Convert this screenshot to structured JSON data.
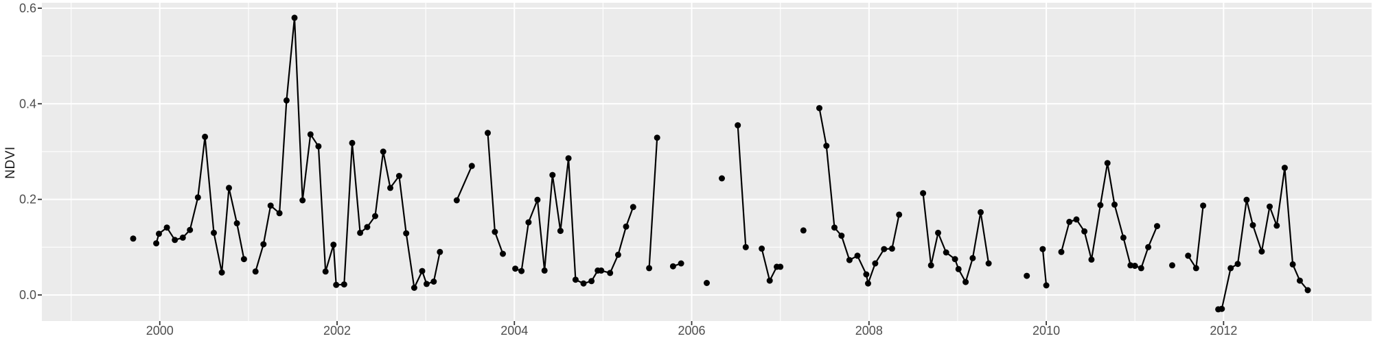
{
  "chart_data": {
    "type": "line",
    "title": "",
    "xlabel": "",
    "ylabel": "NDVI",
    "legend": "none",
    "grid": true,
    "xlim": [
      1998.67,
      2013.67
    ],
    "ylim": [
      -0.0546,
      0.6114
    ],
    "x_ticks": [
      2000,
      2002,
      2004,
      2006,
      2008,
      2010,
      2012
    ],
    "x_tick_labels": [
      "2000",
      "2002",
      "2004",
      "2006",
      "2008",
      "2010",
      "2012"
    ],
    "x_minor_gridlines": [
      1999,
      2001,
      2003,
      2005,
      2007,
      2009,
      2011,
      2013
    ],
    "y_ticks": [
      0.0,
      0.2,
      0.4,
      0.6
    ],
    "y_tick_labels": [
      "0.0",
      "0.2",
      "0.4",
      "0.6"
    ],
    "y_minor_gridlines": [
      0.1,
      0.3,
      0.5
    ],
    "style": {
      "panel_background": "#EBEBEB",
      "grid_color": "#FFFFFF",
      "line_color": "#000000",
      "point_color": "#000000",
      "tick_mark_color": "#333333",
      "tick_label_color": "#4D4D4D",
      "axis_title_color": "#1A1A1A"
    },
    "series": [
      {
        "name": "NDVI",
        "segments": [
          [
            [
              1999.96,
              0.108
            ],
            [
              1999.99,
              0.128
            ],
            [
              2000.08,
              0.141
            ],
            [
              2000.17,
              0.115
            ],
            [
              2000.26,
              0.12
            ],
            [
              2000.34,
              0.136
            ],
            [
              2000.43,
              0.204
            ],
            [
              2000.51,
              0.331
            ],
            [
              2000.61,
              0.13
            ],
            [
              2000.7,
              0.047
            ],
            [
              2000.78,
              0.224
            ],
            [
              2000.87,
              0.15
            ],
            [
              2000.95,
              0.075
            ]
          ],
          [
            [
              2001.08,
              0.049
            ],
            [
              2001.17,
              0.106
            ],
            [
              2001.25,
              0.187
            ],
            [
              2001.35,
              0.171
            ],
            [
              2001.43,
              0.407
            ],
            [
              2001.52,
              0.58
            ],
            [
              2001.61,
              0.198
            ],
            [
              2001.7,
              0.336
            ],
            [
              2001.79,
              0.311
            ],
            [
              2001.87,
              0.049
            ],
            [
              2001.96,
              0.105
            ],
            [
              2001.99,
              0.021
            ],
            [
              2002.08,
              0.022
            ],
            [
              2002.17,
              0.318
            ],
            [
              2002.26,
              0.13
            ],
            [
              2002.34,
              0.142
            ],
            [
              2002.43,
              0.165
            ],
            [
              2002.52,
              0.3
            ],
            [
              2002.6,
              0.224
            ],
            [
              2002.7,
              0.249
            ],
            [
              2002.78,
              0.129
            ],
            [
              2002.87,
              0.015
            ],
            [
              2002.96,
              0.05
            ],
            [
              2003.01,
              0.023
            ],
            [
              2003.09,
              0.028
            ],
            [
              2003.16,
              0.09
            ]
          ],
          [
            [
              2003.35,
              0.198
            ],
            [
              2003.52,
              0.27
            ]
          ],
          [
            [
              2003.7,
              0.339
            ],
            [
              2003.78,
              0.132
            ],
            [
              2003.87,
              0.086
            ]
          ],
          [
            [
              2004.01,
              0.055
            ],
            [
              2004.08,
              0.05
            ],
            [
              2004.16,
              0.152
            ],
            [
              2004.26,
              0.199
            ],
            [
              2004.34,
              0.051
            ],
            [
              2004.43,
              0.251
            ],
            [
              2004.52,
              0.134
            ],
            [
              2004.61,
              0.286
            ],
            [
              2004.69,
              0.032
            ],
            [
              2004.78,
              0.024
            ],
            [
              2004.87,
              0.029
            ],
            [
              2004.94,
              0.051
            ],
            [
              2004.98,
              0.051
            ],
            [
              2005.08,
              0.046
            ],
            [
              2005.17,
              0.084
            ],
            [
              2005.26,
              0.143
            ],
            [
              2005.34,
              0.184
            ]
          ],
          [
            [
              2005.52,
              0.056
            ],
            [
              2005.61,
              0.329
            ]
          ],
          [
            [
              2005.79,
              0.06
            ],
            [
              2005.88,
              0.066
            ]
          ],
          [
            [
              2006.52,
              0.355
            ],
            [
              2006.61,
              0.1
            ]
          ],
          [
            [
              2006.79,
              0.097
            ],
            [
              2006.88,
              0.03
            ],
            [
              2006.96,
              0.059
            ],
            [
              2007.0,
              0.059
            ]
          ],
          [
            [
              2007.44,
              0.391
            ],
            [
              2007.52,
              0.312
            ],
            [
              2007.61,
              0.141
            ],
            [
              2007.69,
              0.124
            ],
            [
              2007.78,
              0.073
            ],
            [
              2007.87,
              0.082
            ],
            [
              2007.97,
              0.043
            ],
            [
              2007.99,
              0.024
            ],
            [
              2008.07,
              0.066
            ],
            [
              2008.17,
              0.096
            ],
            [
              2008.26,
              0.097
            ],
            [
              2008.34,
              0.168
            ]
          ],
          [
            [
              2008.61,
              0.213
            ],
            [
              2008.7,
              0.062
            ],
            [
              2008.78,
              0.13
            ],
            [
              2008.87,
              0.089
            ],
            [
              2008.97,
              0.075
            ],
            [
              2009.01,
              0.054
            ],
            [
              2009.09,
              0.027
            ],
            [
              2009.17,
              0.077
            ],
            [
              2009.26,
              0.173
            ],
            [
              2009.35,
              0.066
            ]
          ],
          [
            [
              2009.96,
              0.096
            ],
            [
              2010.0,
              0.02
            ]
          ],
          [
            [
              2010.17,
              0.09
            ],
            [
              2010.26,
              0.153
            ],
            [
              2010.34,
              0.158
            ],
            [
              2010.43,
              0.133
            ],
            [
              2010.51,
              0.074
            ],
            [
              2010.61,
              0.188
            ],
            [
              2010.69,
              0.276
            ],
            [
              2010.77,
              0.189
            ],
            [
              2010.87,
              0.12
            ],
            [
              2010.95,
              0.062
            ],
            [
              2011.0,
              0.061
            ],
            [
              2011.07,
              0.056
            ],
            [
              2011.15,
              0.1
            ],
            [
              2011.25,
              0.144
            ]
          ],
          [
            [
              2011.6,
              0.082
            ],
            [
              2011.69,
              0.056
            ],
            [
              2011.77,
              0.187
            ]
          ],
          [
            [
              2011.94,
              -0.03
            ],
            [
              2011.98,
              -0.029
            ],
            [
              2012.08,
              0.056
            ],
            [
              2012.16,
              0.065
            ],
            [
              2012.26,
              0.199
            ],
            [
              2012.33,
              0.146
            ],
            [
              2012.43,
              0.091
            ],
            [
              2012.52,
              0.185
            ],
            [
              2012.6,
              0.145
            ],
            [
              2012.69,
              0.266
            ],
            [
              2012.78,
              0.064
            ],
            [
              2012.86,
              0.03
            ],
            [
              2012.95,
              0.01
            ]
          ]
        ],
        "isolated_points": [
          [
            1999.7,
            0.118
          ],
          [
            2006.17,
            0.025
          ],
          [
            2006.34,
            0.244
          ],
          [
            2007.26,
            0.135
          ],
          [
            2009.78,
            0.04
          ],
          [
            2011.42,
            0.062
          ]
        ]
      }
    ]
  }
}
